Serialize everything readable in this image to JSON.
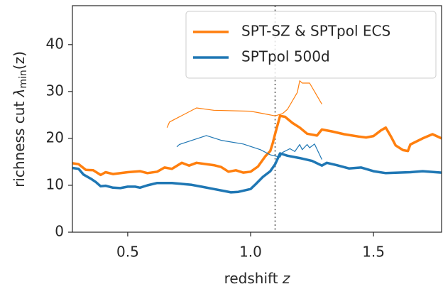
{
  "chart_data": {
    "type": "line",
    "xlabel": {
      "text": "redshift ",
      "symbol": "z"
    },
    "ylabel": {
      "text": "richness cut ",
      "symbol": "λ",
      "subscript": "min",
      "suffix": "(z)"
    },
    "xlim": [
      0.275,
      1.777
    ],
    "ylim": [
      0,
      48.3
    ],
    "xticks": [
      0.5,
      {
        "value": 1.0,
        "label": "1.0"
      },
      1.5
    ],
    "yticks": [
      0,
      10,
      20,
      30,
      40
    ],
    "vline": {
      "x": 1.1,
      "color": "#808080",
      "style": "dotted"
    },
    "legend": "upper right",
    "grid": false,
    "series": [
      {
        "name": "SPT-SZ & SPTpol ECS",
        "color": "#ff7f0e",
        "width": "thick",
        "x": [
          0.275,
          0.3,
          0.33,
          0.36,
          0.39,
          0.41,
          0.44,
          0.5,
          0.55,
          0.58,
          0.62,
          0.65,
          0.68,
          0.72,
          0.75,
          0.78,
          0.85,
          0.88,
          0.91,
          0.94,
          0.97,
          1.0,
          1.03,
          1.06,
          1.08,
          1.09,
          1.1,
          1.12,
          1.14,
          1.17,
          1.2,
          1.23,
          1.27,
          1.29,
          1.33,
          1.38,
          1.44,
          1.47,
          1.5,
          1.53,
          1.55,
          1.57,
          1.59,
          1.62,
          1.64,
          1.65,
          1.7,
          1.74,
          1.777
        ],
        "values": [
          14.7,
          14.5,
          13.3,
          13.2,
          12.2,
          12.8,
          12.4,
          12.8,
          13.0,
          12.6,
          12.9,
          13.8,
          13.5,
          14.8,
          14.2,
          14.8,
          14.3,
          13.9,
          12.9,
          13.2,
          12.7,
          12.9,
          14.0,
          16.2,
          17.3,
          19.0,
          21.0,
          24.8,
          24.6,
          23.3,
          22.3,
          21.0,
          20.6,
          21.9,
          21.5,
          20.9,
          20.4,
          20.2,
          20.5,
          21.7,
          22.3,
          20.5,
          18.5,
          17.5,
          17.3,
          18.7,
          20.0,
          20.9,
          20.0
        ]
      },
      {
        "name": "SPTpol 500d",
        "color": "#1f77b4",
        "width": "thick",
        "x": [
          0.275,
          0.3,
          0.32,
          0.35,
          0.37,
          0.39,
          0.41,
          0.44,
          0.47,
          0.5,
          0.53,
          0.55,
          0.58,
          0.62,
          0.68,
          0.72,
          0.76,
          0.8,
          0.85,
          0.9,
          0.92,
          0.95,
          1.0,
          1.02,
          1.05,
          1.08,
          1.1,
          1.12,
          1.15,
          1.2,
          1.25,
          1.29,
          1.31,
          1.35,
          1.4,
          1.45,
          1.5,
          1.55,
          1.6,
          1.65,
          1.7,
          1.777
        ],
        "values": [
          13.7,
          13.5,
          12.3,
          11.4,
          10.7,
          9.8,
          9.9,
          9.5,
          9.4,
          9.7,
          9.7,
          9.5,
          10.0,
          10.5,
          10.5,
          10.3,
          10.1,
          9.7,
          9.2,
          8.7,
          8.5,
          8.6,
          9.2,
          10.2,
          11.8,
          13.0,
          14.5,
          16.8,
          16.3,
          15.8,
          15.2,
          14.2,
          14.8,
          14.3,
          13.6,
          13.8,
          13.0,
          12.6,
          12.7,
          12.8,
          13.0,
          12.7
        ]
      },
      {
        "color": "#ff7f0e",
        "width": "thin",
        "x": [
          0.66,
          0.67,
          0.78,
          0.85,
          1.0,
          1.05,
          1.1,
          1.13,
          1.15,
          1.19,
          1.2,
          1.21,
          1.24,
          1.29
        ],
        "values": [
          22.3,
          23.5,
          26.5,
          26.0,
          25.8,
          25.3,
          24.8,
          25.3,
          26.2,
          29.8,
          32.3,
          31.8,
          31.8,
          27.3
        ]
      },
      {
        "color": "#1f77b4",
        "width": "thin",
        "x": [
          0.7,
          0.71,
          0.82,
          0.88,
          0.97,
          1.04,
          1.08,
          1.12,
          1.13,
          1.16,
          1.18,
          1.2,
          1.21,
          1.23,
          1.24,
          1.26,
          1.29
        ],
        "values": [
          18.2,
          18.7,
          20.6,
          19.6,
          18.8,
          17.6,
          16.5,
          16.0,
          17.0,
          17.8,
          17.2,
          18.7,
          17.6,
          18.7,
          18.0,
          18.8,
          15.5
        ]
      }
    ]
  }
}
